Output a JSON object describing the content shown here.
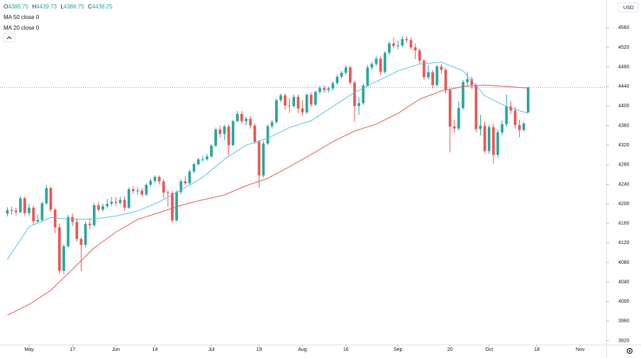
{
  "chart_data": {
    "type": "candlestick",
    "ohlc_labels": [
      "O",
      "H",
      "L",
      "C"
    ],
    "currency": "USD",
    "up_color": "#26a69a",
    "down_color": "#ef5350",
    "x": [
      0,
      1,
      2,
      3,
      4,
      5,
      6,
      7,
      8,
      9,
      10,
      11,
      12,
      13,
      14,
      15,
      16,
      17,
      18,
      19,
      20,
      21,
      22,
      23,
      24,
      25,
      26,
      27,
      28,
      29,
      30,
      31,
      32,
      33,
      34,
      35,
      36,
      37,
      38,
      39,
      40,
      41,
      42,
      43,
      44,
      45,
      46,
      47,
      48,
      49,
      50,
      51,
      52,
      53,
      54,
      55,
      56,
      57,
      58,
      59,
      60,
      61,
      62,
      63,
      64,
      65,
      66,
      67,
      68,
      69,
      70,
      71,
      72,
      73,
      74,
      75,
      76,
      77,
      78,
      79,
      80,
      81,
      82,
      83,
      84,
      85,
      86,
      87,
      88,
      89,
      90,
      91,
      92,
      93,
      94,
      95,
      96,
      97,
      98,
      99,
      100,
      101,
      102,
      103,
      104,
      105,
      106,
      107,
      108,
      109,
      110,
      111,
      112,
      113,
      114,
      115,
      116,
      117,
      118,
      119,
      120
    ],
    "open": [
      4180,
      4187,
      4186,
      4183,
      4211,
      4181,
      4192,
      4164,
      4167,
      4201,
      4232,
      4188,
      4152,
      4063,
      4113,
      4173,
      4163,
      4128,
      4116,
      4159,
      4156,
      4197,
      4188,
      4195,
      4200,
      4204,
      4202,
      4208,
      4192,
      4230,
      4226,
      4227,
      4219,
      4239,
      4247,
      4255,
      4246,
      4223,
      4222,
      4166,
      4224,
      4246,
      4242,
      4266,
      4281,
      4291,
      4291,
      4297,
      4319,
      4352,
      4343,
      4358,
      4320,
      4369,
      4384,
      4369,
      4374,
      4360,
      4327,
      4258,
      4323,
      4359,
      4367,
      4412,
      4422,
      4401,
      4400,
      4419,
      4395,
      4387,
      4423,
      4403,
      4429,
      4437,
      4433,
      4436,
      4447,
      4460,
      4468,
      4479,
      4448,
      4400,
      4406,
      4442,
      4479,
      4486,
      4497,
      4470,
      4509,
      4528,
      4523,
      4524,
      4537,
      4535,
      4520,
      4514,
      4493,
      4459,
      4469,
      4443,
      4481,
      4474,
      4433,
      4358,
      4354,
      4396,
      4449,
      4455,
      4443,
      4353,
      4360,
      4308,
      4357,
      4300,
      4346,
      4363,
      4399,
      4391,
      4361,
      4351,
      4386.75
    ],
    "high": [
      4193,
      4194,
      4192,
      4216,
      4215,
      4200,
      4196,
      4178,
      4205,
      4238,
      4236,
      4192,
      4160,
      4118,
      4178,
      4180,
      4170,
      4132,
      4164,
      4170,
      4202,
      4204,
      4200,
      4210,
      4214,
      4214,
      4214,
      4216,
      4234,
      4236,
      4234,
      4232,
      4242,
      4252,
      4258,
      4258,
      4250,
      4228,
      4226,
      4228,
      4250,
      4256,
      4270,
      4284,
      4294,
      4298,
      4302,
      4322,
      4356,
      4360,
      4362,
      4362,
      4372,
      4390,
      4390,
      4378,
      4380,
      4364,
      4330,
      4328,
      4362,
      4372,
      4416,
      4426,
      4426,
      4416,
      4424,
      4424,
      4412,
      4426,
      4428,
      4432,
      4442,
      4442,
      4440,
      4450,
      4464,
      4472,
      4484,
      4482,
      4452,
      4418,
      4446,
      4484,
      4490,
      4502,
      4502,
      4512,
      4532,
      4540,
      4534,
      4544,
      4542,
      4540,
      4528,
      4518,
      4496,
      4484,
      4474,
      4484,
      4486,
      4478,
      4436,
      4372,
      4410,
      4454,
      4470,
      4460,
      4446,
      4382,
      4368,
      4362,
      4364,
      4352,
      4370,
      4424,
      4410,
      4398,
      4372,
      4368,
      4439.73
    ],
    "low": [
      4174,
      4178,
      4176,
      4180,
      4176,
      4175,
      4157,
      4160,
      4163,
      4198,
      4185,
      4140,
      4056,
      4056,
      4110,
      4155,
      4122,
      4062,
      4110,
      4148,
      4152,
      4184,
      4184,
      4190,
      4195,
      4196,
      4198,
      4186,
      4190,
      4220,
      4218,
      4214,
      4216,
      4234,
      4242,
      4240,
      4212,
      4194,
      4162,
      4164,
      4220,
      4238,
      4240,
      4262,
      4278,
      4286,
      4288,
      4294,
      4316,
      4336,
      4330,
      4300,
      4318,
      4366,
      4364,
      4360,
      4354,
      4322,
      4233,
      4254,
      4320,
      4354,
      4364,
      4408,
      4392,
      4386,
      4396,
      4386,
      4380,
      4384,
      4398,
      4400,
      4424,
      4428,
      4428,
      4432,
      4444,
      4456,
      4464,
      4444,
      4368,
      4382,
      4402,
      4440,
      4474,
      4482,
      4464,
      4466,
      4504,
      4518,
      4516,
      4520,
      4530,
      4516,
      4496,
      4486,
      4454,
      4454,
      4436,
      4440,
      4466,
      4426,
      4305,
      4346,
      4350,
      4392,
      4440,
      4436,
      4346,
      4340,
      4304,
      4302,
      4282,
      4294,
      4340,
      4358,
      4384,
      4354,
      4336,
      4348,
      4386.75
    ],
    "close": [
      4187,
      4186,
      4183,
      4211,
      4181,
      4192,
      4164,
      4167,
      4201,
      4232,
      4188,
      4152,
      4063,
      4113,
      4173,
      4163,
      4128,
      4116,
      4159,
      4156,
      4197,
      4188,
      4195,
      4200,
      4204,
      4202,
      4208,
      4192,
      4230,
      4226,
      4227,
      4219,
      4239,
      4247,
      4255,
      4246,
      4223,
      4222,
      4166,
      4224,
      4246,
      4242,
      4266,
      4281,
      4291,
      4291,
      4297,
      4319,
      4352,
      4343,
      4358,
      4320,
      4369,
      4384,
      4369,
      4374,
      4360,
      4327,
      4258,
      4323,
      4359,
      4367,
      4412,
      4422,
      4401,
      4400,
      4419,
      4395,
      4387,
      4423,
      4403,
      4429,
      4437,
      4433,
      4436,
      4447,
      4460,
      4468,
      4479,
      4448,
      4400,
      4406,
      4442,
      4479,
      4486,
      4497,
      4470,
      4509,
      4528,
      4523,
      4524,
      4537,
      4535,
      4520,
      4514,
      4493,
      4459,
      4469,
      4443,
      4481,
      4474,
      4433,
      4358,
      4354,
      4396,
      4449,
      4455,
      4443,
      4353,
      4360,
      4308,
      4357,
      4300,
      4346,
      4363,
      4399,
      4391,
      4361,
      4351,
      4364,
      4438.25
    ],
    "series": [
      {
        "name": "MA 50 close 0",
        "color": "#ef5350",
        "x": [
          0,
          5,
          10,
          15,
          20,
          25,
          30,
          35,
          40,
          45,
          50,
          55,
          60,
          65,
          70,
          75,
          80,
          85,
          90,
          95,
          100,
          105,
          110,
          115,
          120
        ],
        "values": [
          3972,
          3994,
          4023,
          4066,
          4110,
          4142,
          4168,
          4182,
          4197,
          4208,
          4218,
          4237,
          4252,
          4276,
          4301,
          4327,
          4349,
          4363,
          4385,
          4414,
          4431,
          4440,
          4443,
          4440,
          4437
        ]
      },
      {
        "name": "MA 20 close 0",
        "color": "#4fc3e8",
        "x": [
          0,
          5,
          10,
          15,
          20,
          25,
          30,
          35,
          40,
          45,
          50,
          55,
          60,
          65,
          70,
          75,
          80,
          85,
          90,
          95,
          100,
          105,
          110,
          115,
          120
        ],
        "values": [
          4086,
          4153,
          4172,
          4168,
          4169,
          4175,
          4185,
          4204,
          4228,
          4254,
          4291,
          4320,
          4334,
          4356,
          4370,
          4399,
          4428,
          4450,
          4472,
          4486,
          4490,
          4472,
          4421,
          4399,
          4385
        ]
      }
    ],
    "xlim": [
      -1.7,
      138
    ],
    "xticks": [
      {
        "value": 5,
        "label": "May"
      },
      {
        "value": 15,
        "label": "17"
      },
      {
        "value": 25,
        "label": "Jun"
      },
      {
        "value": 34,
        "label": "14"
      },
      {
        "value": 47,
        "label": "Jul"
      },
      {
        "value": 58,
        "label": "19"
      },
      {
        "value": 68,
        "label": "Aug"
      },
      {
        "value": 78,
        "label": "16"
      },
      {
        "value": 90,
        "label": "Sep"
      },
      {
        "value": 102,
        "label": "20"
      },
      {
        "value": 111,
        "label": "Oct"
      },
      {
        "value": 122,
        "label": "18"
      },
      {
        "value": 132,
        "label": "Nov"
      }
    ],
    "ylim": [
      3912,
      4617
    ],
    "yticks": [
      3920,
      3960,
      4000,
      4040,
      4080,
      4120,
      4160,
      4200,
      4240,
      4280,
      4320,
      4360,
      4400,
      4440,
      4480,
      4520,
      4560
    ]
  }
}
